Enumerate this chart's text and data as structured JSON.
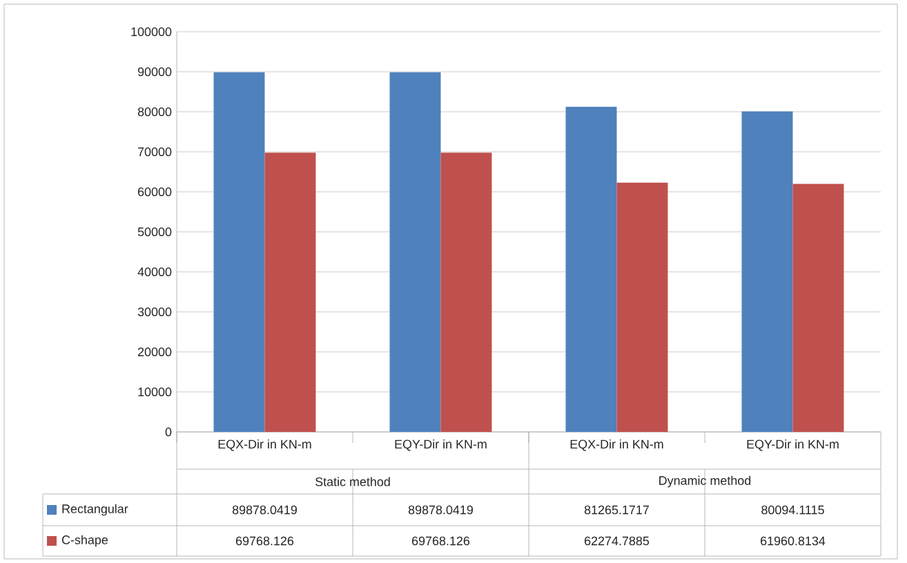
{
  "chart_data": {
    "type": "bar",
    "categories": [
      "EQX-Dir in KN-m",
      "EQY-Dir in  KN-m",
      "EQX-Dir in KN-m",
      "EQY-Dir in KN-m"
    ],
    "series": [
      {
        "name": "Rectangular",
        "color": "#4f81bd",
        "values": [
          89878.0419,
          89878.0419,
          81265.1717,
          80094.1115
        ]
      },
      {
        "name": "C-shape",
        "color": "#c0504d",
        "values": [
          69768.126,
          69768.126,
          62274.7885,
          61960.8134
        ]
      }
    ],
    "annotations": [
      "Static method",
      "Dynamic method"
    ],
    "ylim": [
      0,
      100000
    ],
    "yticks": [
      0,
      10000,
      20000,
      30000,
      40000,
      50000,
      60000,
      70000,
      80000,
      90000,
      100000
    ],
    "grid": "y",
    "legend": "bottom",
    "data_labels": true
  }
}
